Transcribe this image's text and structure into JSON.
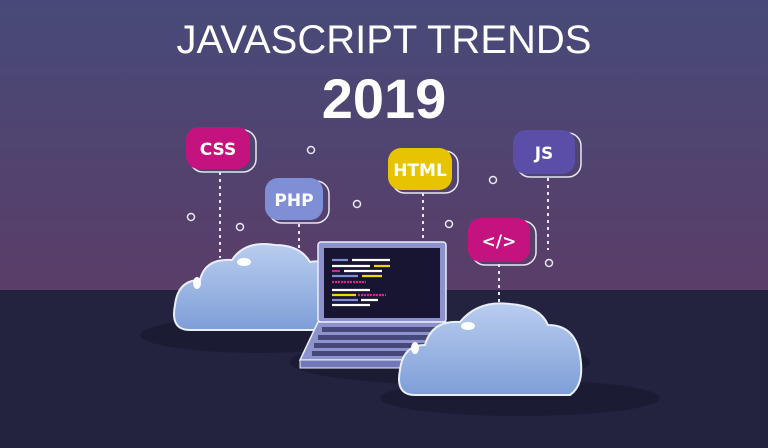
{
  "title": {
    "line1": "JAVASCRIPT TRENDS",
    "line2": "2019"
  },
  "badges": [
    {
      "label": "CSS",
      "color": "#c4127f"
    },
    {
      "label": "PHP",
      "color": "#7f8fd6"
    },
    {
      "label": "HTML",
      "color": "#e8c300"
    },
    {
      "label": "JS",
      "color": "#5b4ea8"
    },
    {
      "label": "</>",
      "color": "#c4127f"
    }
  ],
  "colors": {
    "sky_top": "#474a78",
    "sky_bottom": "#5a3d68",
    "floor": "#232340",
    "cloud": "#a6bde6",
    "laptop": "#8d92cc"
  }
}
